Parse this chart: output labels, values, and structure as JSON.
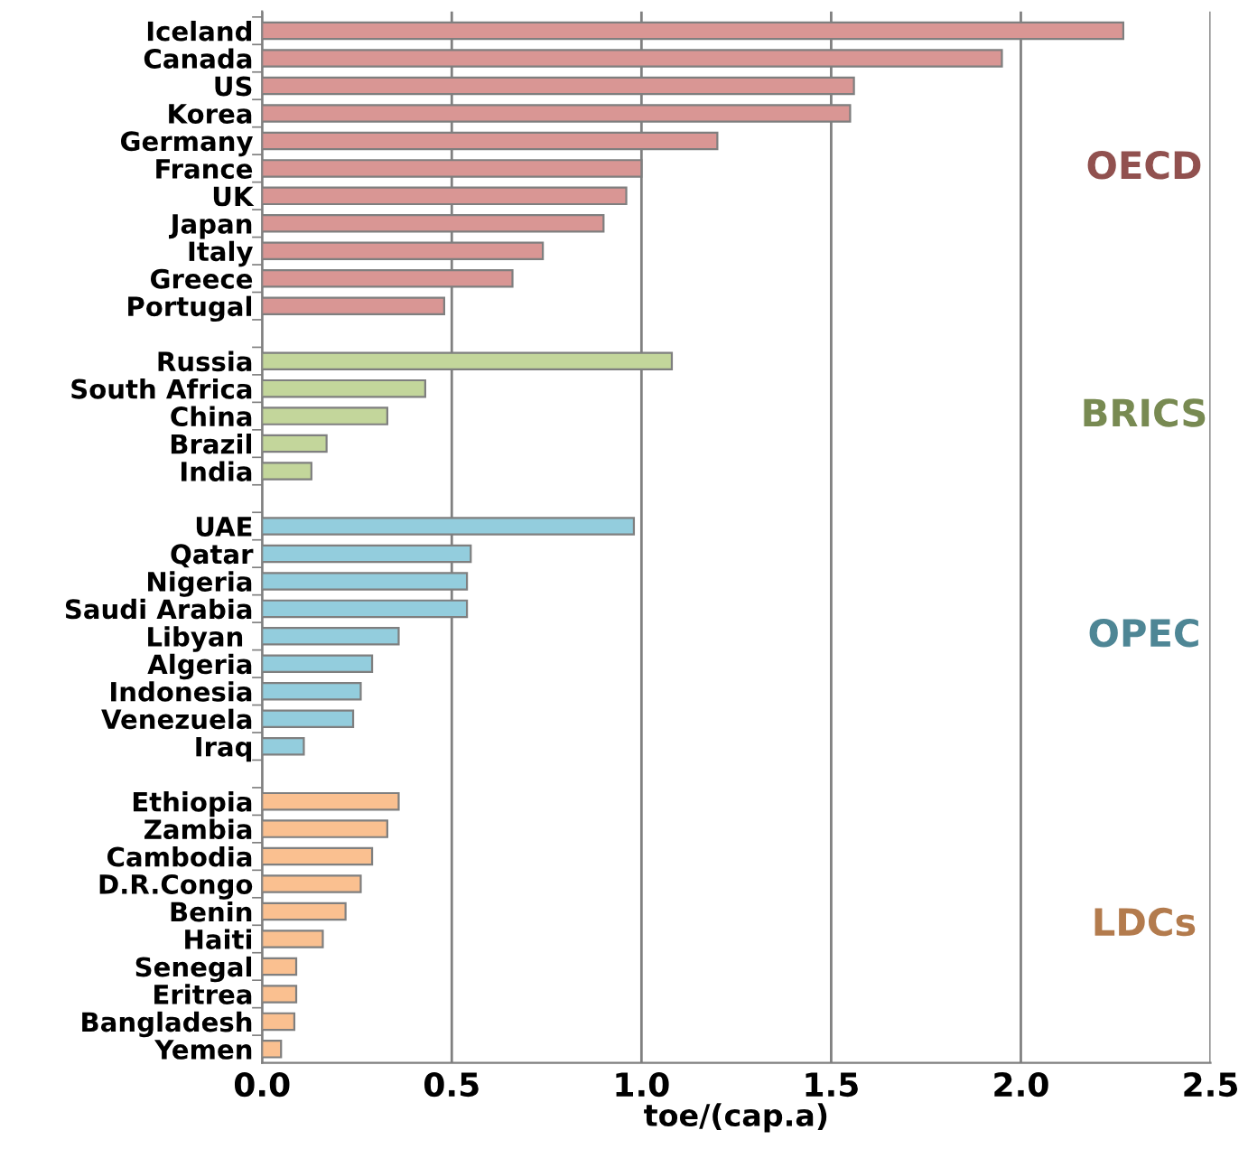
{
  "chart_data": {
    "type": "bar",
    "orientation": "horizontal",
    "xlabel": "toe/(cap.a)",
    "categories": [
      "Iceland",
      "Canada",
      "US",
      "Korea",
      "Germany",
      "France",
      "UK",
      "Japan",
      "Italy",
      "Greece",
      "Portugal",
      null,
      "Russia",
      "South Africa",
      "China",
      "Brazil",
      "India",
      null,
      "UAE",
      "Qatar",
      "Nigeria",
      "Saudi Arabia",
      "Libyan ",
      "Algeria",
      "Indonesia",
      "Venezuela",
      "Iraq",
      null,
      "Ethiopia",
      "Zambia",
      "Cambodia",
      "D.R.Congo",
      "Benin",
      "Haiti",
      "Senegal",
      "Eritrea",
      "Bangladesh",
      "Yemen"
    ],
    "series": [
      {
        "name": "OECD",
        "color": "#d99694",
        "values": [
          2.27,
          1.95,
          1.56,
          1.55,
          1.2,
          1.0,
          0.96,
          0.9,
          0.74,
          0.66,
          0.48,
          null,
          null,
          null,
          null,
          null,
          null,
          null,
          null,
          null,
          null,
          null,
          null,
          null,
          null,
          null,
          null,
          null,
          null,
          null,
          null,
          null,
          null,
          null,
          null,
          null,
          null,
          null
        ]
      },
      {
        "name": "BRICS",
        "color": "#c3d69b",
        "values": [
          null,
          null,
          null,
          null,
          null,
          null,
          null,
          null,
          null,
          null,
          null,
          null,
          1.08,
          0.43,
          0.33,
          0.17,
          0.13,
          null,
          null,
          null,
          null,
          null,
          null,
          null,
          null,
          null,
          null,
          null,
          null,
          null,
          null,
          null,
          null,
          null,
          null,
          null,
          null,
          null
        ]
      },
      {
        "name": "OPEC",
        "color": "#93cddd",
        "values": [
          null,
          null,
          null,
          null,
          null,
          null,
          null,
          null,
          null,
          null,
          null,
          null,
          null,
          null,
          null,
          null,
          null,
          null,
          0.98,
          0.55,
          0.54,
          0.54,
          0.36,
          0.29,
          0.26,
          0.24,
          0.11,
          null,
          null,
          null,
          null,
          null,
          null,
          null,
          null,
          null,
          null,
          null
        ]
      },
      {
        "name": "LDCs",
        "color": "#fac090",
        "values": [
          null,
          null,
          null,
          null,
          null,
          null,
          null,
          null,
          null,
          null,
          null,
          null,
          null,
          null,
          null,
          null,
          null,
          null,
          null,
          null,
          null,
          null,
          null,
          null,
          null,
          null,
          null,
          null,
          0.36,
          0.33,
          0.29,
          0.26,
          0.22,
          0.16,
          0.09,
          0.09,
          0.085,
          0.05
        ]
      }
    ],
    "xlim": [
      0,
      2.5
    ],
    "xticks": [
      {
        "value": 0,
        "label": "0.0"
      },
      0.5,
      {
        "value": 1,
        "label": "1.0"
      },
      1.5,
      {
        "value": 2,
        "label": "2.0"
      },
      2.5
    ],
    "grid": "x",
    "legend": false
  }
}
